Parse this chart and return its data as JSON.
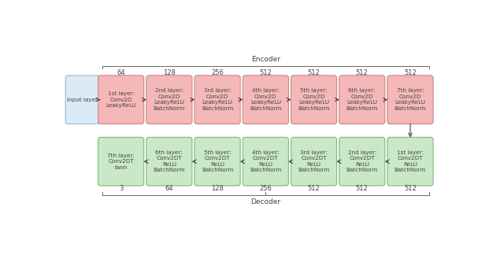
{
  "figure_bg": "#ffffff",
  "encoder_label": "Encoder",
  "decoder_label": "Decoder",
  "input_box": {
    "label": "Input layer",
    "color": "#daeaf7",
    "edge_color": "#9bbfda"
  },
  "encoder_boxes": [
    {
      "label": "1st layer:\nConv2D\nLeakyReLU",
      "number": "64"
    },
    {
      "label": "2nd layer:\nConv2D\nLeakyReLU\nBatchNorm",
      "number": "128"
    },
    {
      "label": "3rd layer:\nConv2D\nLeakyReLU\nBatchNorm",
      "number": "256"
    },
    {
      "label": "4th layer:\nConv2D\nLeakyReLU\nBatchNorm",
      "number": "512"
    },
    {
      "label": "5th layer:\nConv2D\nLeakyReLU\nBatchNorm",
      "number": "512"
    },
    {
      "label": "6th layer:\nConv2D\nLeakyReLU\nBatchNorm",
      "number": "512"
    },
    {
      "label": "7th layer:\nConv2D\nLeakyReLU\nBatchNorm",
      "number": "512"
    }
  ],
  "decoder_boxes": [
    {
      "label": "1st layer:\nConv2DT\nReLU\nBatchNorm",
      "number": "512"
    },
    {
      "label": "2nd layer:\nConv2DT\nReLU\nBatchNorm",
      "number": "512"
    },
    {
      "label": "3rd layer:\nConv2DT\nReLU\nBatchNorm",
      "number": "512"
    },
    {
      "label": "4th layer:\nConv2DT\nReLU\nBatchNorm",
      "number": "256"
    },
    {
      "label": "5th layer:\nConv2DT\nReLU\nBatchNorm",
      "number": "128"
    },
    {
      "label": "6th layer:\nConv2DT\nReLU\nBatchNorm",
      "number": "64"
    },
    {
      "label": "7th layer:\nConv2DT\ntanh",
      "number": "3"
    }
  ],
  "encoder_color": "#f5b8b8",
  "encoder_edge": "#d08080",
  "decoder_color": "#c8e8c8",
  "decoder_edge": "#80b880",
  "text_color": "#444444",
  "font_size": 5.2,
  "number_font_size": 6.0,
  "label_font_size": 6.5
}
